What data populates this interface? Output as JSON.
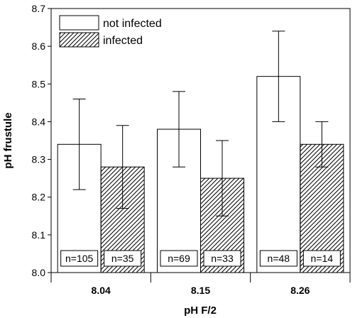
{
  "chart_data": {
    "type": "bar",
    "xlabel": "pH F/2",
    "ylabel": "pH frustule",
    "categories": [
      "8.04",
      "8.15",
      "8.26"
    ],
    "ylim": [
      8.0,
      8.7
    ],
    "yticks": [
      "8.0",
      "8.1",
      "8.2",
      "8.3",
      "8.4",
      "8.5",
      "8.6",
      "8.7"
    ],
    "legend_position": "top-left",
    "grid": false,
    "series": [
      {
        "name": "not infected",
        "pattern": "solid-white",
        "values": [
          8.34,
          8.38,
          8.52
        ],
        "error": [
          0.12,
          0.1,
          0.12
        ],
        "n_labels": [
          "n=105",
          "n=69",
          "n=48"
        ]
      },
      {
        "name": "infected",
        "pattern": "diagonal-hatch",
        "values": [
          8.28,
          8.25,
          8.34
        ],
        "error": [
          0.11,
          0.1,
          0.06
        ],
        "n_labels": [
          "n=35",
          "n=33",
          "n=14"
        ]
      }
    ]
  }
}
